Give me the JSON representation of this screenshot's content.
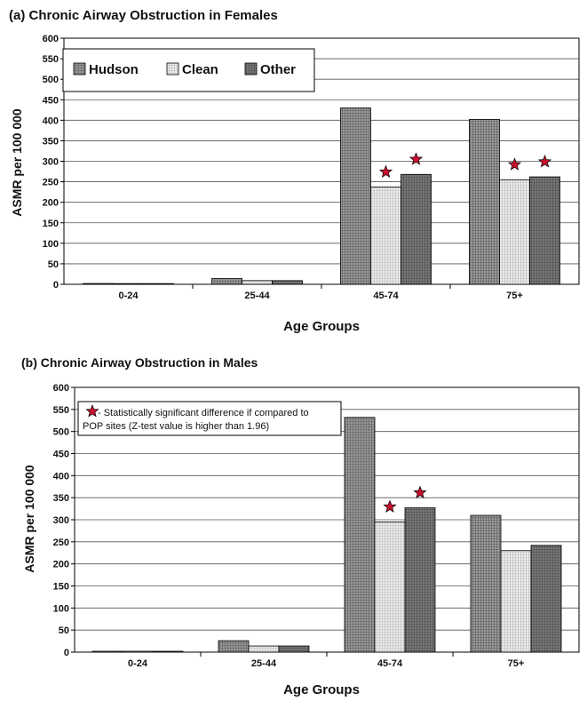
{
  "colors": {
    "hudson": "#8a8a8a",
    "clean": "#e4e4e4",
    "other": "#6e6e6e",
    "star": "#c8102e"
  },
  "chart_data": [
    {
      "type": "bar",
      "title": "(a) Chronic Airway Obstruction in Females",
      "xlabel": "Age Groups",
      "ylabel": "ASMR per 100 000",
      "ylim": [
        0,
        600
      ],
      "yticks": [
        "0",
        "50",
        "100",
        "150",
        "200",
        "250",
        "300",
        "350",
        "400",
        "450",
        "500",
        "550",
        "600"
      ],
      "categories": [
        "0-24",
        "25-44",
        "45-74",
        "75+"
      ],
      "series": [
        {
          "name": "Hudson",
          "values": [
            2,
            14,
            430,
            402
          ],
          "significant": [
            false,
            false,
            false,
            false
          ]
        },
        {
          "name": "Clean",
          "values": [
            1,
            9,
            237,
            255
          ],
          "significant": [
            false,
            false,
            true,
            true
          ]
        },
        {
          "name": "Other",
          "values": [
            1,
            9,
            268,
            262
          ],
          "significant": [
            false,
            false,
            true,
            true
          ]
        }
      ],
      "legend": {
        "position": "top-left",
        "entries": [
          "Hudson",
          "Clean",
          "Other"
        ]
      },
      "grid": true
    },
    {
      "type": "bar",
      "title": "(b) Chronic Airway Obstruction in Males",
      "xlabel": "Age Groups",
      "ylabel": "ASMR per 100 000",
      "ylim": [
        0,
        600
      ],
      "yticks": [
        "0",
        "50",
        "100",
        "150",
        "200",
        "250",
        "300",
        "350",
        "400",
        "450",
        "500",
        "550",
        "600"
      ],
      "categories": [
        "0-24",
        "25-44",
        "45-74",
        "75+"
      ],
      "series": [
        {
          "name": "Hudson",
          "values": [
            2,
            26,
            532,
            310
          ],
          "significant": [
            false,
            false,
            false,
            false
          ]
        },
        {
          "name": "Clean",
          "values": [
            2,
            14,
            295,
            230
          ],
          "significant": [
            false,
            false,
            true,
            false
          ]
        },
        {
          "name": "Other",
          "values": [
            2,
            14,
            327,
            242
          ],
          "significant": [
            false,
            false,
            true,
            false
          ]
        }
      ],
      "note": {
        "line1": "- Statistically significant difference if compared to",
        "line2": "POP sites (Z-test value is higher than 1.96)"
      },
      "grid": true
    }
  ]
}
